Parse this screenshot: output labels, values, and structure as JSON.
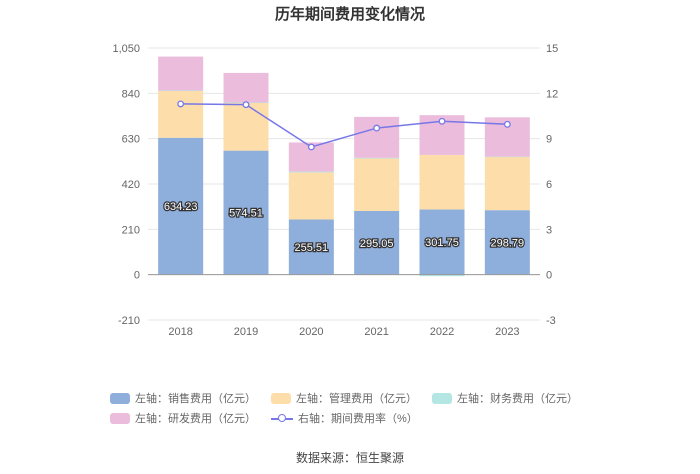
{
  "chart_data": {
    "type": "bar",
    "stacked": true,
    "title": "历年期间费用变化情况",
    "categories": [
      "2018",
      "2019",
      "2020",
      "2021",
      "2022",
      "2023"
    ],
    "left_axis": {
      "min": -210,
      "max": 1050,
      "ticks": [
        "-210",
        "0",
        "210",
        "420",
        "630",
        "840",
        "1,050"
      ]
    },
    "right_axis": {
      "min": -3,
      "max": 15,
      "ticks": [
        "-3",
        "0",
        "3",
        "6",
        "9",
        "12",
        "15"
      ]
    },
    "series": [
      {
        "name": "左轴：销售费用（亿元）",
        "color": "#8eaedc",
        "values": [
          634.23,
          574.51,
          255.51,
          295.05,
          301.75,
          298.79
        ],
        "labels": [
          "634.23",
          "574.51",
          "255.51",
          "295.05",
          "301.75",
          "298.79"
        ]
      },
      {
        "name": "左轴：管理费用（亿元）",
        "color": "#fdddaa",
        "values": [
          218,
          222,
          218,
          243,
          253,
          247
        ]
      },
      {
        "name": "左轴：财务费用（亿元）",
        "color": "#b4e6e4",
        "values": [
          1,
          1,
          4,
          3,
          -7,
          1
        ]
      },
      {
        "name": "左轴：研发费用（亿元）",
        "color": "#ebbcdc",
        "values": [
          157,
          137,
          135,
          190,
          184,
          182
        ]
      }
    ],
    "line_series": {
      "name": "右轴：期间费用率（%）",
      "color": "#7777e8",
      "axis": "right",
      "values": [
        11.3,
        11.25,
        8.45,
        9.7,
        10.15,
        9.95
      ]
    },
    "legend_position": "bottom",
    "grid": true
  },
  "footer": {
    "source": "数据来源：恒生聚源"
  }
}
